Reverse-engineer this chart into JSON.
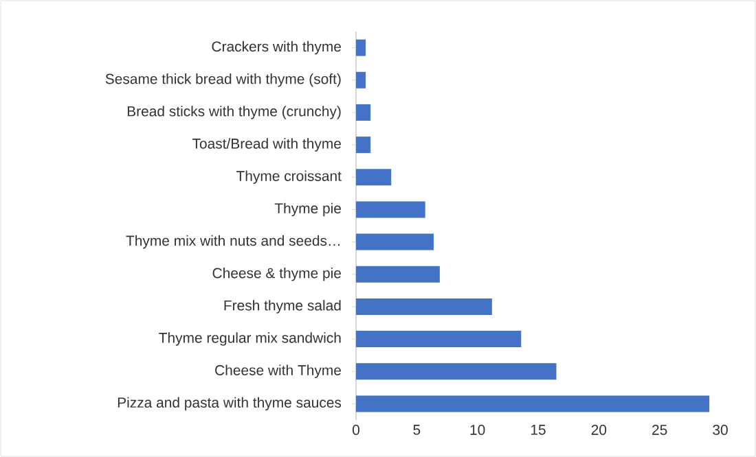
{
  "chart_data": {
    "type": "bar",
    "orientation": "horizontal",
    "categories": [
      "Crackers with thyme",
      "Sesame thick bread with thyme (soft)",
      "Bread sticks with thyme (crunchy)",
      "Toast/Bread with thyme",
      "Thyme croissant",
      "Thyme pie",
      "Thyme mix with nuts and seeds…",
      "Cheese & thyme pie",
      "Fresh thyme salad",
      "Thyme regular mix sandwich",
      "Cheese with Thyme",
      "Pizza and pasta with thyme sauces"
    ],
    "values": [
      0.8,
      0.8,
      1.2,
      1.2,
      2.9,
      5.7,
      6.4,
      6.9,
      11.2,
      13.6,
      16.5,
      29.1
    ],
    "color": "#4472c4",
    "xlim": [
      0,
      30
    ],
    "xticks": [
      0,
      5,
      10,
      15,
      20,
      25,
      30
    ],
    "grid": false
  }
}
